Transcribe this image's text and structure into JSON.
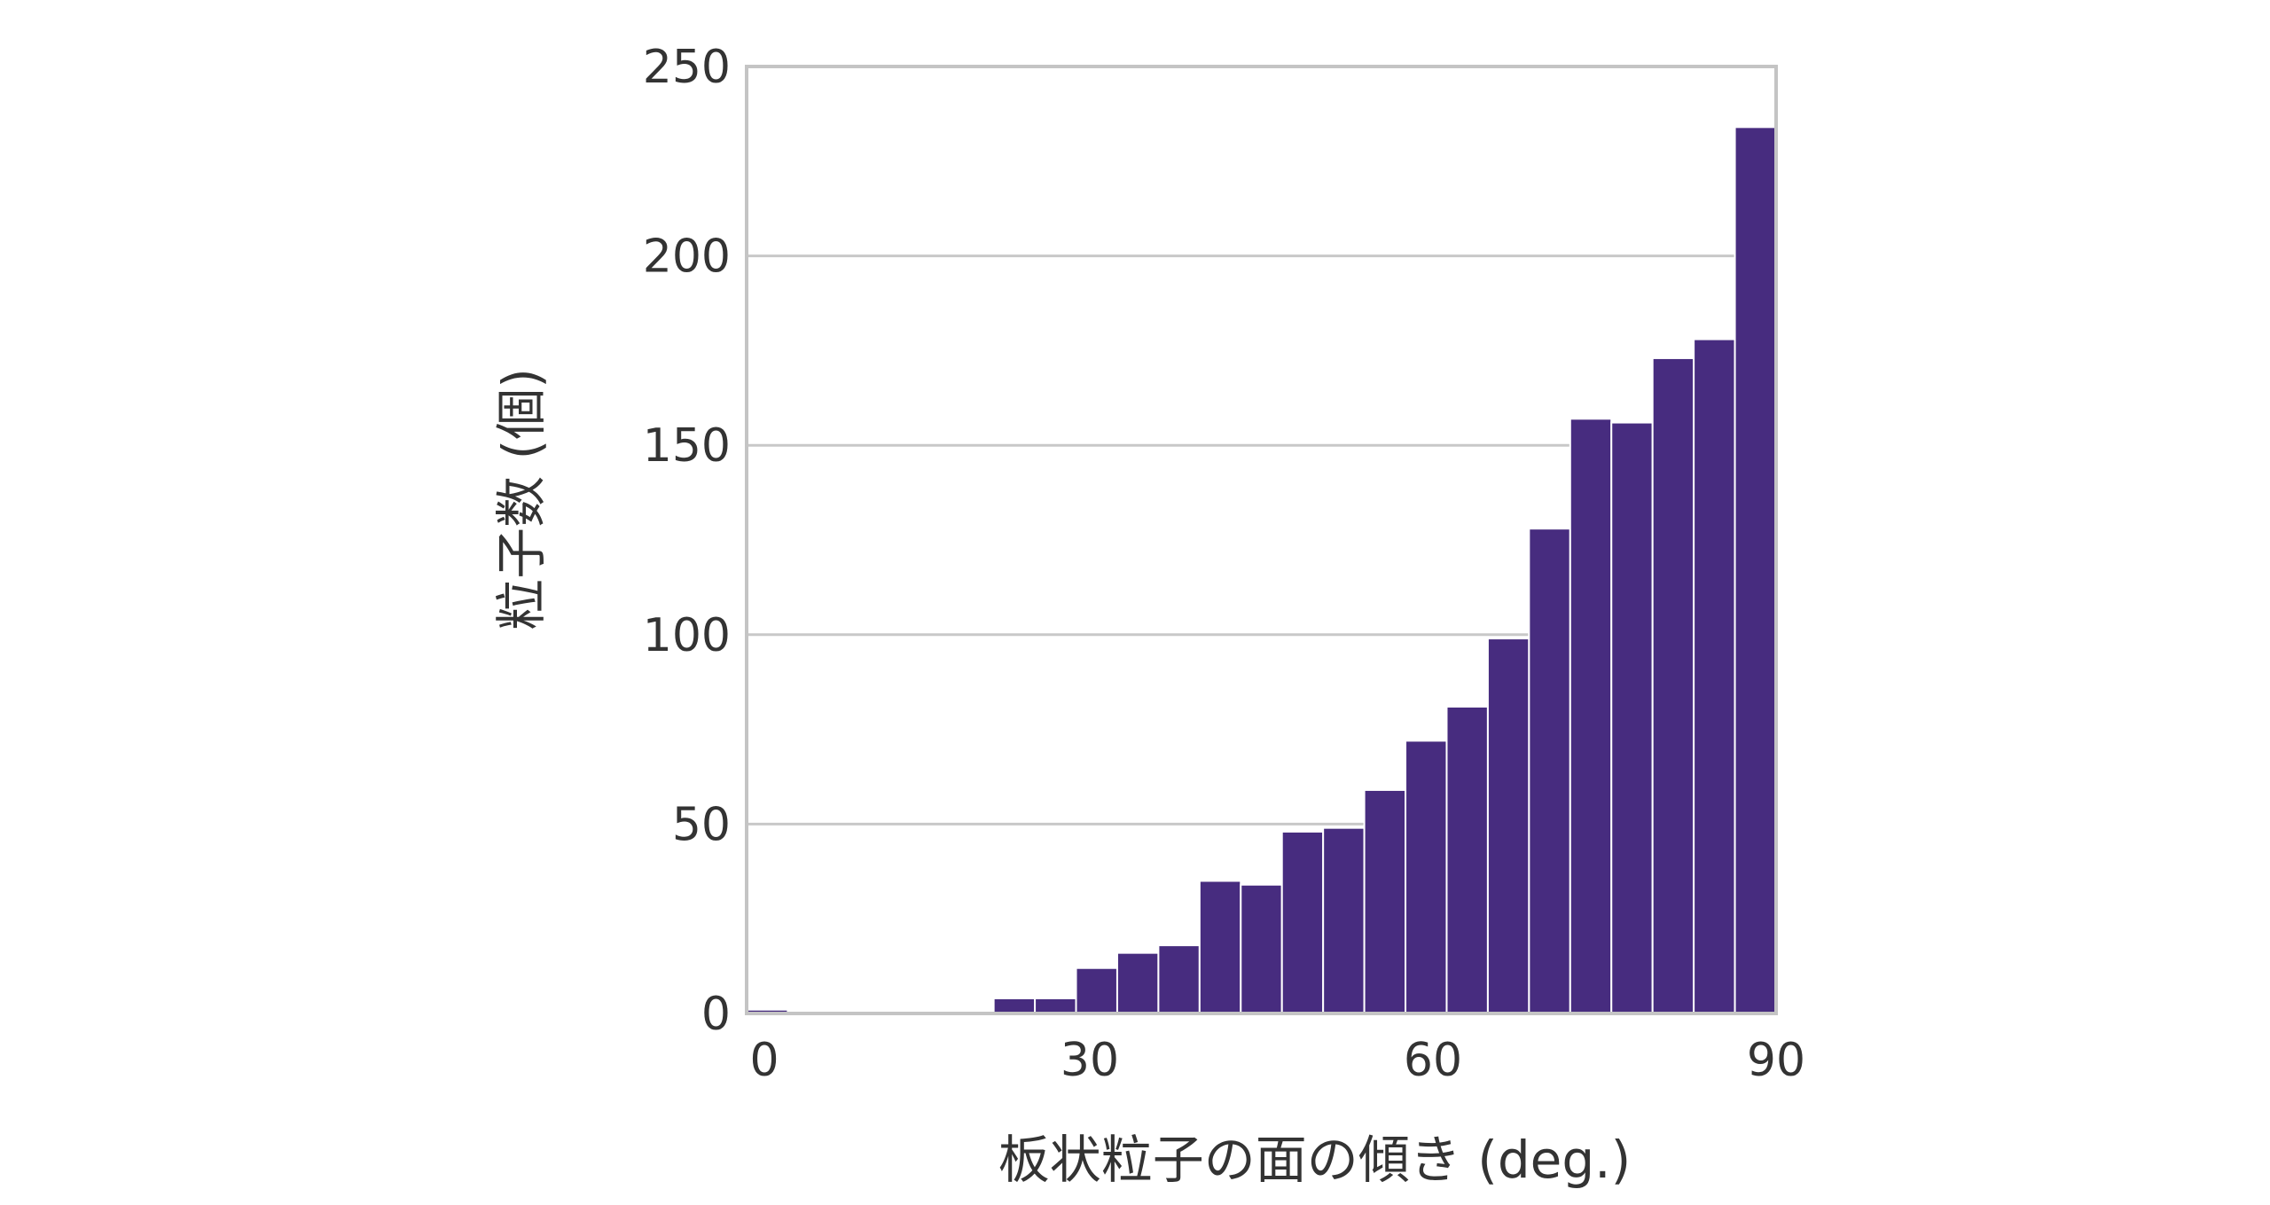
{
  "chart_data": {
    "type": "bar",
    "title": "",
    "xlabel": "板状粒子の面の傾き (deg.)",
    "ylabel": "粒子数 (個)",
    "xlim": [
      0,
      90
    ],
    "ylim": [
      0,
      250
    ],
    "x_ticks": [
      "0",
      "30",
      "60",
      "90"
    ],
    "y_ticks": [
      "0",
      "50",
      "100",
      "150",
      "200",
      "250"
    ],
    "grid": "horizontal",
    "bin_width": 3.6,
    "bin_edges_start": [
      0,
      3.6,
      7.2,
      10.8,
      14.4,
      18,
      21.6,
      25.2,
      28.8,
      32.4,
      36,
      39.6,
      43.2,
      46.8,
      50.4,
      54,
      57.6,
      61.2,
      64.8,
      68.4,
      72,
      75.6,
      79.2,
      82.8,
      86.4
    ],
    "values": [
      1,
      0,
      0,
      0,
      0,
      0,
      4,
      4,
      12,
      16,
      18,
      35,
      34,
      48,
      49,
      59,
      72,
      81,
      99,
      128,
      157,
      156,
      173,
      178,
      234
    ],
    "color": "#472c7f"
  }
}
